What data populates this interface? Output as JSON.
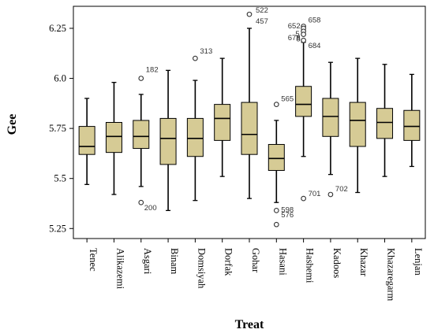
{
  "chart_data": {
    "type": "boxplot",
    "xlabel": "Treat",
    "ylabel": "Gee",
    "ylim": [
      5.2,
      6.36
    ],
    "yticks": [
      "5.25",
      "5.5",
      "5.75",
      "6.0",
      "6.25"
    ],
    "colors": {
      "box_fill": "#d6cb95",
      "stroke": "#000000",
      "outlier_label": "#333333"
    },
    "categories": [
      "Tenec",
      "Alikazemi",
      "Asgari",
      "Binam",
      "Domsiyah",
      "Dorfak",
      "Gohar",
      "Hasani",
      "Hashemi",
      "Kadoos",
      "Khazar",
      "Khazaregarm",
      "Lenjan"
    ],
    "boxes": [
      {
        "category": "Tenec",
        "whisker_low": 5.47,
        "q1": 5.62,
        "median": 5.66,
        "q3": 5.76,
        "whisker_high": 5.9
      },
      {
        "category": "Alikazemi",
        "whisker_low": 5.42,
        "q1": 5.63,
        "median": 5.71,
        "q3": 5.78,
        "whisker_high": 5.98
      },
      {
        "category": "Asgari",
        "whisker_low": 5.46,
        "q1": 5.65,
        "median": 5.71,
        "q3": 5.79,
        "whisker_high": 5.92
      },
      {
        "category": "Binam",
        "whisker_low": 5.34,
        "q1": 5.57,
        "median": 5.7,
        "q3": 5.8,
        "whisker_high": 6.04
      },
      {
        "category": "Domsiyah",
        "whisker_low": 5.39,
        "q1": 5.61,
        "median": 5.7,
        "q3": 5.8,
        "whisker_high": 5.99
      },
      {
        "category": "Dorfak",
        "whisker_low": 5.51,
        "q1": 5.69,
        "median": 5.8,
        "q3": 5.87,
        "whisker_high": 6.1
      },
      {
        "category": "Gohar",
        "whisker_low": 5.4,
        "q1": 5.62,
        "median": 5.72,
        "q3": 5.88,
        "whisker_high": 6.25
      },
      {
        "category": "Hasani",
        "whisker_low": 5.38,
        "q1": 5.54,
        "median": 5.6,
        "q3": 5.67,
        "whisker_high": 5.79
      },
      {
        "category": "Hashemi",
        "whisker_low": 5.61,
        "q1": 5.81,
        "median": 5.87,
        "q3": 5.96,
        "whisker_high": 6.18
      },
      {
        "category": "Kadoos",
        "whisker_low": 5.52,
        "q1": 5.71,
        "median": 5.81,
        "q3": 5.9,
        "whisker_high": 6.08
      },
      {
        "category": "Khazar",
        "whisker_low": 5.43,
        "q1": 5.66,
        "median": 5.79,
        "q3": 5.88,
        "whisker_high": 6.1
      },
      {
        "category": "Khazaregarm",
        "whisker_low": 5.51,
        "q1": 5.7,
        "median": 5.78,
        "q3": 5.85,
        "whisker_high": 6.07
      },
      {
        "category": "Lenjan",
        "whisker_low": 5.56,
        "q1": 5.69,
        "median": 5.76,
        "q3": 5.84,
        "whisker_high": 6.02
      }
    ],
    "outliers": [
      {
        "category": "Asgari",
        "value": 6.0,
        "label": "182"
      },
      {
        "category": "Asgari",
        "value": 5.38,
        "label": "200"
      },
      {
        "category": "Domsiyah",
        "value": 6.1,
        "label": "313"
      },
      {
        "category": "Gohar",
        "value": 6.32,
        "label": "522"
      },
      {
        "category": "Gohar",
        "value": 6.32,
        "label": "457"
      },
      {
        "category": "Hasani",
        "value": 5.87,
        "label": "565"
      },
      {
        "category": "Hasani",
        "value": 5.34,
        "label": "598"
      },
      {
        "category": "Hasani",
        "value": 5.27,
        "label": "576"
      },
      {
        "category": "Hashemi",
        "value": 6.26,
        "label": "658"
      },
      {
        "category": "Hashemi",
        "value": 6.25,
        "label": "652"
      },
      {
        "category": "Hashemi",
        "value": 6.235,
        "label": "5"
      },
      {
        "category": "Hashemi",
        "value": 6.22,
        "label": "8"
      },
      {
        "category": "Hashemi",
        "value": 6.19,
        "label": "678"
      },
      {
        "category": "Hashemi",
        "value": 6.19,
        "label": "684"
      },
      {
        "category": "Hashemi",
        "value": 5.4,
        "label": "701"
      },
      {
        "category": "Kadoos",
        "value": 5.42,
        "label": "702"
      }
    ]
  }
}
